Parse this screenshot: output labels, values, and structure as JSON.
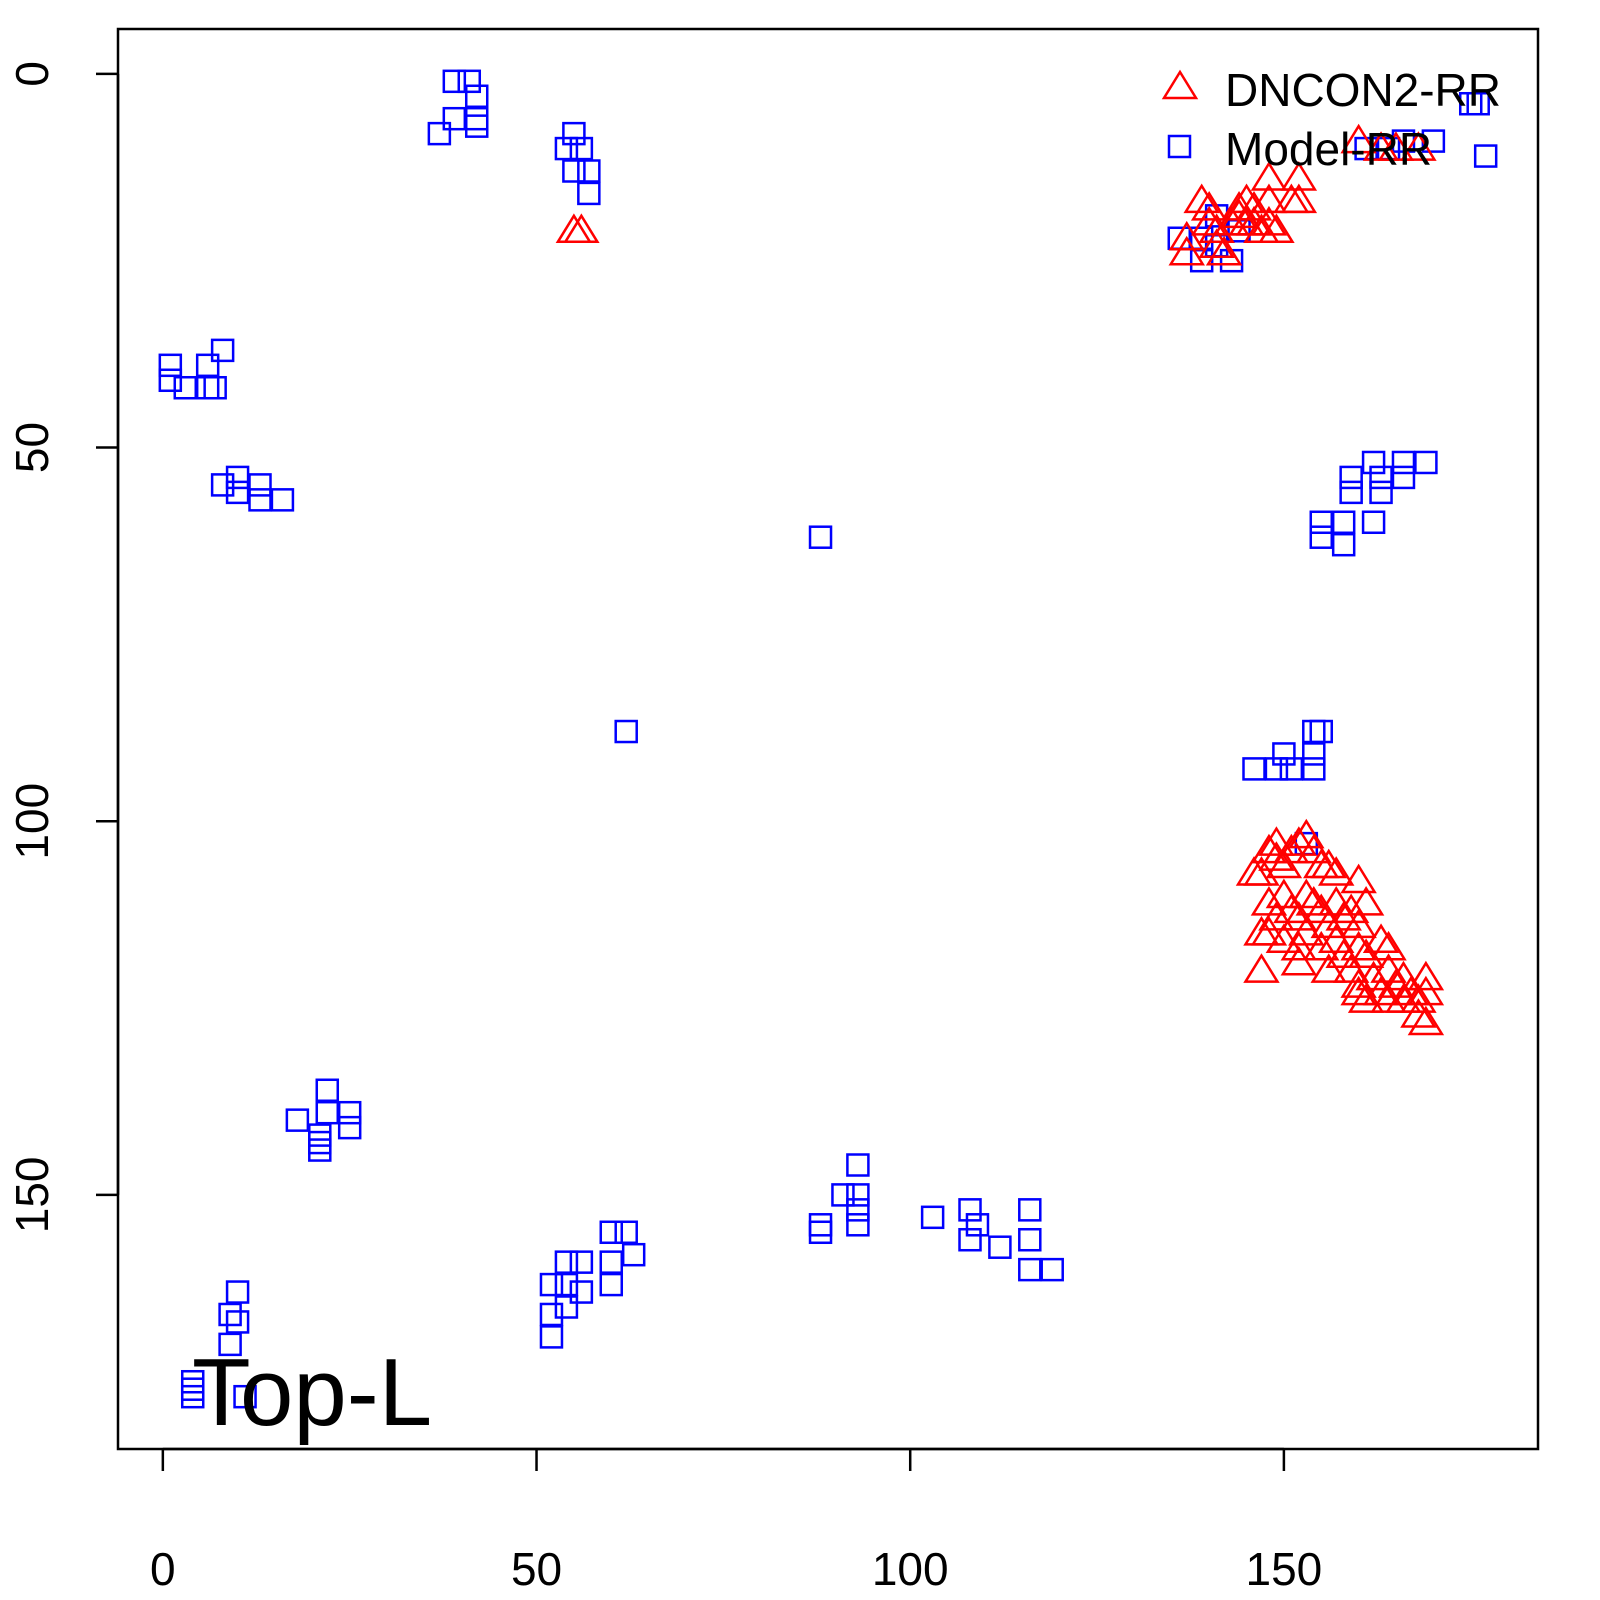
{
  "chart_data": {
    "type": "scatter",
    "title": "",
    "xlabel": "",
    "ylabel": "",
    "xlim": [
      -6,
      184
    ],
    "ylim": [
      -6,
      184
    ],
    "y_inverted": true,
    "x_ticks": [
      0,
      50,
      100,
      150
    ],
    "y_ticks": [
      0,
      50,
      100,
      150
    ],
    "x_tick_labels": [
      "0",
      "50",
      "100",
      "150"
    ],
    "y_tick_labels": [
      "0",
      "50",
      "100",
      "150"
    ],
    "grid": false,
    "legend_position": "top-right",
    "annotation": "Top-L",
    "series": [
      {
        "name": "DNCON2-RR",
        "marker": "triangle-open",
        "color": "#ff0000",
        "points": [
          [
            55,
            21
          ],
          [
            56,
            21
          ],
          [
            137,
            22
          ],
          [
            137,
            24
          ],
          [
            139,
            17
          ],
          [
            140,
            18
          ],
          [
            140,
            20
          ],
          [
            141,
            21
          ],
          [
            141,
            23
          ],
          [
            142,
            24
          ],
          [
            143,
            20
          ],
          [
            144,
            18
          ],
          [
            144,
            19
          ],
          [
            145,
            17
          ],
          [
            145,
            20
          ],
          [
            146,
            18
          ],
          [
            146,
            20
          ],
          [
            147,
            21
          ],
          [
            148,
            14
          ],
          [
            148,
            17
          ],
          [
            148,
            20
          ],
          [
            149,
            21
          ],
          [
            152,
            14
          ],
          [
            152,
            17
          ],
          [
            151,
            17
          ],
          [
            160,
            9
          ],
          [
            163,
            10
          ],
          [
            165,
            10
          ],
          [
            168,
            10
          ],
          [
            146,
            107
          ],
          [
            147,
            107
          ],
          [
            148,
            104
          ],
          [
            149,
            103
          ],
          [
            149,
            105
          ],
          [
            150,
            106
          ],
          [
            151,
            104
          ],
          [
            152,
            103
          ],
          [
            153,
            102
          ],
          [
            154,
            104
          ],
          [
            155,
            106
          ],
          [
            156,
            106
          ],
          [
            157,
            107
          ],
          [
            160,
            108
          ],
          [
            148,
            111
          ],
          [
            149,
            113
          ],
          [
            150,
            110
          ],
          [
            151,
            112
          ],
          [
            152,
            113
          ],
          [
            153,
            110
          ],
          [
            154,
            111
          ],
          [
            155,
            112
          ],
          [
            156,
            114
          ],
          [
            157,
            111
          ],
          [
            158,
            113
          ],
          [
            159,
            112
          ],
          [
            160,
            114
          ],
          [
            161,
            111
          ],
          [
            147,
            115
          ],
          [
            148,
            115
          ],
          [
            150,
            116
          ],
          [
            152,
            117
          ],
          [
            153,
            115
          ],
          [
            155,
            117
          ],
          [
            157,
            116
          ],
          [
            158,
            118
          ],
          [
            160,
            117
          ],
          [
            161,
            118
          ],
          [
            163,
            116
          ],
          [
            164,
            117
          ],
          [
            147,
            120
          ],
          [
            152,
            119
          ],
          [
            156,
            120
          ],
          [
            159,
            120
          ],
          [
            160,
            122
          ],
          [
            162,
            121
          ],
          [
            163,
            123
          ],
          [
            164,
            120
          ],
          [
            165,
            122
          ],
          [
            166,
            121
          ],
          [
            166,
            124
          ],
          [
            167,
            123
          ],
          [
            168,
            124
          ],
          [
            169,
            121
          ],
          [
            169,
            123
          ],
          [
            168,
            126
          ],
          [
            169,
            127
          ],
          [
            160,
            123
          ],
          [
            161,
            124
          ],
          [
            164,
            124
          ]
        ]
      },
      {
        "name": "Model-RR",
        "marker": "square-open",
        "color": "#0000ff",
        "points": [
          [
            39,
            1
          ],
          [
            41,
            1
          ],
          [
            42,
            3
          ],
          [
            39,
            6
          ],
          [
            42,
            7
          ],
          [
            37,
            8
          ],
          [
            42,
            6
          ],
          [
            55,
            8
          ],
          [
            54,
            10
          ],
          [
            56,
            10
          ],
          [
            55,
            13
          ],
          [
            57,
            13
          ],
          [
            57,
            16
          ],
          [
            1,
            39
          ],
          [
            1,
            41
          ],
          [
            3,
            42
          ],
          [
            6,
            39
          ],
          [
            7,
            42
          ],
          [
            8,
            37
          ],
          [
            6,
            42
          ],
          [
            8,
            55
          ],
          [
            10,
            54
          ],
          [
            10,
            56
          ],
          [
            13,
            55
          ],
          [
            13,
            57
          ],
          [
            16,
            57
          ],
          [
            88,
            62
          ],
          [
            62,
            88
          ],
          [
            136,
            22
          ],
          [
            139,
            22
          ],
          [
            139,
            25
          ],
          [
            141,
            19
          ],
          [
            143,
            25
          ],
          [
            141,
            23
          ],
          [
            144,
            21
          ],
          [
            169,
            52
          ],
          [
            166,
            52
          ],
          [
            162,
            52
          ],
          [
            159,
            54
          ],
          [
            159,
            56
          ],
          [
            163,
            54
          ],
          [
            163,
            56
          ],
          [
            166,
            54
          ],
          [
            155,
            60
          ],
          [
            158,
            60
          ],
          [
            162,
            60
          ],
          [
            155,
            62
          ],
          [
            158,
            63
          ],
          [
            154,
            88
          ],
          [
            155,
            88
          ],
          [
            150,
            91
          ],
          [
            146,
            93
          ],
          [
            149,
            93
          ],
          [
            151,
            93
          ],
          [
            154,
            93
          ],
          [
            154,
            91
          ],
          [
            153,
            103
          ],
          [
            175,
            4
          ],
          [
            176,
            4
          ],
          [
            177,
            11
          ],
          [
            161,
            10
          ],
          [
            164,
            10
          ],
          [
            170,
            9
          ],
          [
            166,
            9
          ],
          [
            18,
            140
          ],
          [
            22,
            136
          ],
          [
            22,
            139
          ],
          [
            25,
            139
          ],
          [
            25,
            141
          ],
          [
            21,
            143
          ],
          [
            21,
            144
          ],
          [
            21,
            142
          ],
          [
            10,
            163
          ],
          [
            9,
            166
          ],
          [
            10,
            167
          ],
          [
            9,
            170
          ],
          [
            4,
            175
          ],
          [
            4,
            176
          ],
          [
            4,
            177
          ],
          [
            11,
            177
          ],
          [
            52,
            169
          ],
          [
            52,
            166
          ],
          [
            52,
            162
          ],
          [
            54,
            165
          ],
          [
            54,
            159
          ],
          [
            56,
            159
          ],
          [
            56,
            163
          ],
          [
            54,
            162
          ],
          [
            60,
            155
          ],
          [
            62,
            155
          ],
          [
            63,
            158
          ],
          [
            60,
            162
          ],
          [
            60,
            159
          ],
          [
            88,
            154
          ],
          [
            88,
            155
          ],
          [
            91,
            150
          ],
          [
            93,
            146
          ],
          [
            93,
            150
          ],
          [
            93,
            154
          ],
          [
            93,
            152
          ],
          [
            103,
            153
          ],
          [
            108,
            152
          ],
          [
            108,
            156
          ],
          [
            109,
            154
          ],
          [
            112,
            157
          ],
          [
            116,
            152
          ],
          [
            116,
            156
          ],
          [
            116,
            160
          ],
          [
            119,
            160
          ]
        ]
      }
    ]
  }
}
